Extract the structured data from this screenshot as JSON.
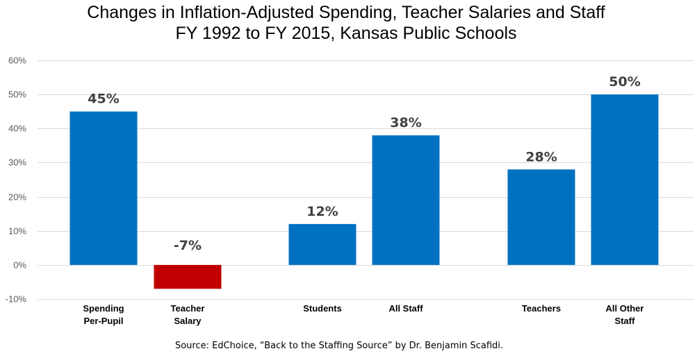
{
  "chart_data": {
    "type": "bar",
    "title": [
      "Changes in Inflation-Adjusted Spending, Teacher Salaries and Staff",
      "FY 1992 to FY 2015, Kansas Public Schools"
    ],
    "xlabel": "",
    "ylabel": "",
    "ylim": [
      -10,
      60
    ],
    "yticks": [
      "60%",
      "50%",
      "40%",
      "30%",
      "20%",
      "10%",
      "0%",
      "-10%"
    ],
    "ytick_values": [
      60,
      50,
      40,
      30,
      20,
      10,
      0,
      -10
    ],
    "grid": true,
    "groups": [
      [
        "Spending Per-Pupil",
        "Teacher Salary"
      ],
      [
        "Students",
        "All Staff"
      ],
      [
        "Teachers",
        "All Other Staff"
      ]
    ],
    "categories": [
      [
        "Spending",
        "Per-Pupil"
      ],
      [
        "Teacher",
        "Salary"
      ],
      [
        "Students"
      ],
      [
        "All Staff"
      ],
      [
        "Teachers"
      ],
      [
        "All Other",
        "Staff"
      ]
    ],
    "values": [
      45,
      -7,
      12,
      38,
      28,
      50
    ],
    "data_labels": [
      "45%",
      "-7%",
      "12%",
      "38%",
      "28%",
      "50%"
    ],
    "colors": [
      "#0070c0",
      "#c00000",
      "#0070c0",
      "#0070c0",
      "#0070c0",
      "#0070c0"
    ],
    "source": "Source: EdChoice, “Back to the Staffing Source” by Dr. Benjamin Scafidi."
  }
}
